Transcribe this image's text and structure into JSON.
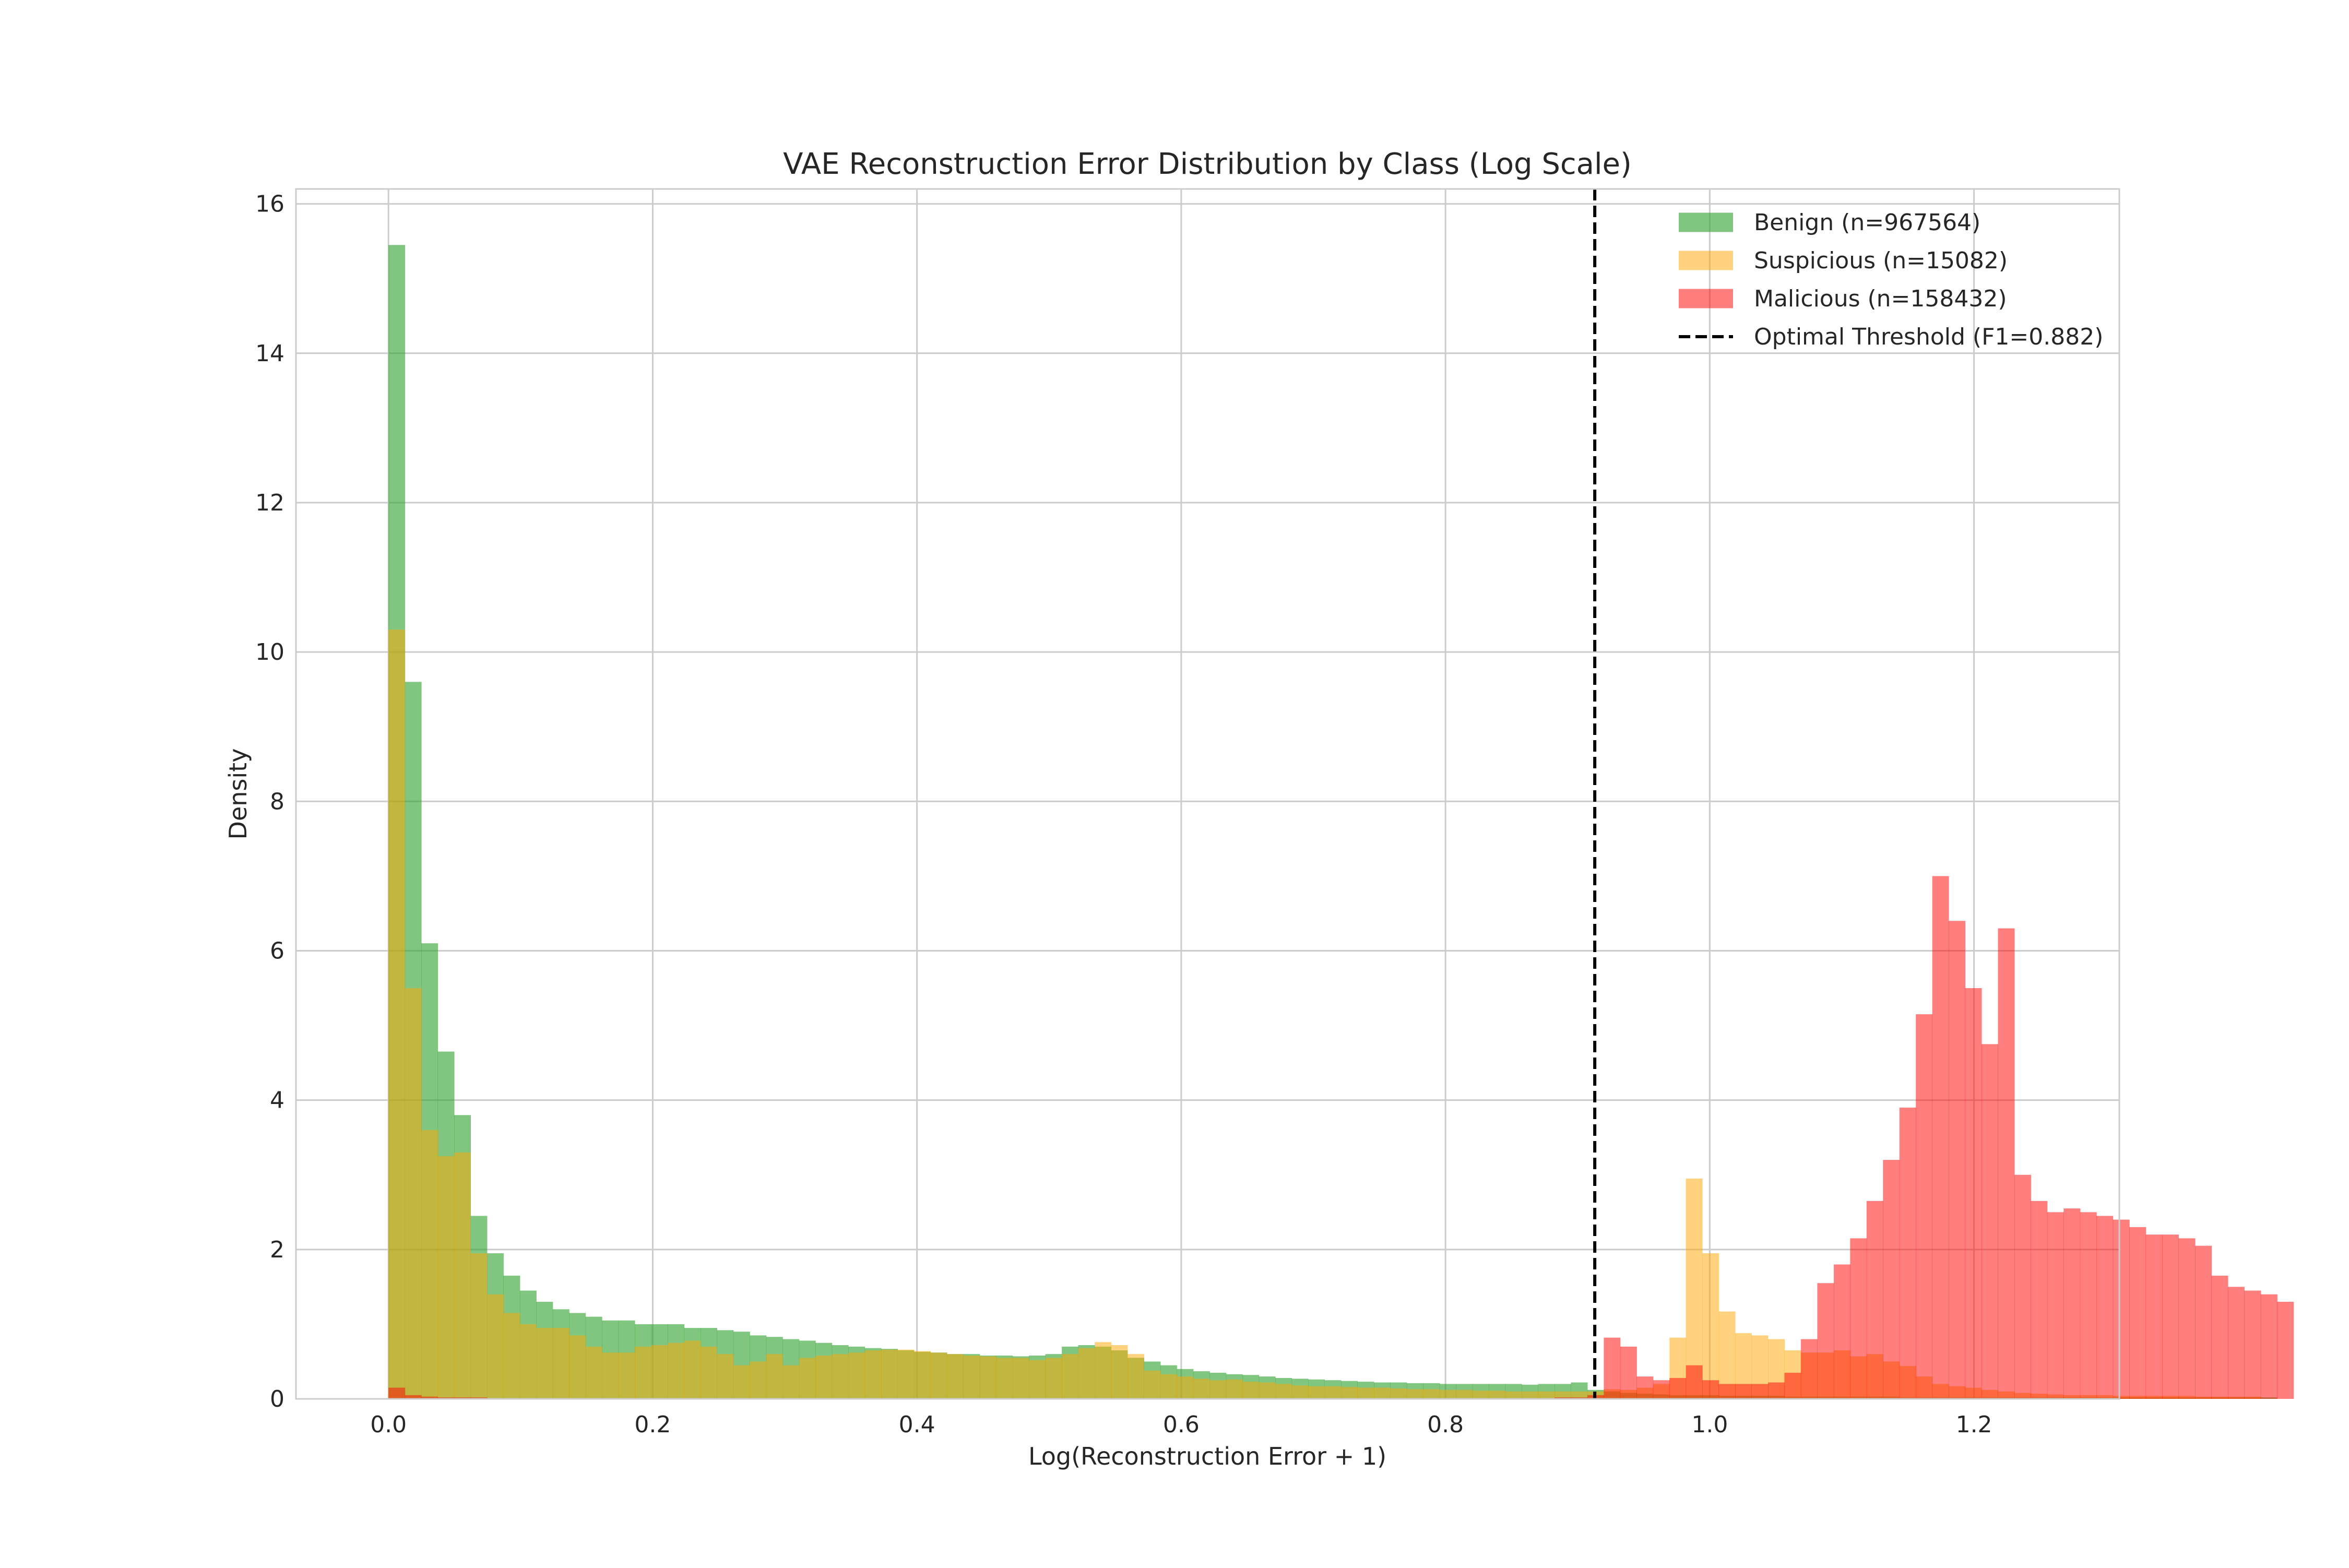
{
  "chart_data": {
    "type": "histogram",
    "title": "VAE Reconstruction Error Distribution by Class (Log Scale)",
    "xlabel": "Log(Reconstruction Error + 1)",
    "ylabel": "Density",
    "xlim": [
      -0.07,
      1.31
    ],
    "ylim": [
      0,
      16.2
    ],
    "xticks": [
      0.0,
      0.2,
      0.4,
      0.6,
      0.8,
      1.0,
      1.2
    ],
    "xtick_labels": [
      "0.0",
      "0.2",
      "0.4",
      "0.6",
      "0.8",
      "1.0",
      "1.2"
    ],
    "yticks": [
      0,
      2,
      4,
      6,
      8,
      10,
      12,
      14,
      16
    ],
    "ytick_labels": [
      "0",
      "2",
      "4",
      "6",
      "8",
      "10",
      "12",
      "14",
      "16"
    ],
    "grid": true,
    "legend_position": "top-right",
    "bin_start": 0.0,
    "bin_width": 0.01243,
    "series": [
      {
        "name": "Benign (n=967564)",
        "color": "#2ca02c",
        "opacity": 0.6,
        "values": [
          15.45,
          9.6,
          6.1,
          4.65,
          3.8,
          2.45,
          1.95,
          1.65,
          1.45,
          1.3,
          1.2,
          1.15,
          1.1,
          1.05,
          1.05,
          1.0,
          1.0,
          1.0,
          0.95,
          0.95,
          0.92,
          0.9,
          0.85,
          0.83,
          0.8,
          0.78,
          0.75,
          0.72,
          0.7,
          0.68,
          0.67,
          0.65,
          0.63,
          0.62,
          0.6,
          0.6,
          0.58,
          0.58,
          0.57,
          0.58,
          0.6,
          0.7,
          0.72,
          0.7,
          0.65,
          0.55,
          0.5,
          0.45,
          0.4,
          0.37,
          0.35,
          0.33,
          0.32,
          0.3,
          0.28,
          0.27,
          0.26,
          0.25,
          0.24,
          0.23,
          0.22,
          0.22,
          0.21,
          0.21,
          0.2,
          0.2,
          0.2,
          0.2,
          0.2,
          0.19,
          0.2,
          0.2,
          0.22,
          0.12,
          0.1,
          0.08,
          0.07,
          0.06,
          0.05,
          0.05,
          0.05,
          0.04,
          0.04,
          0.04,
          0.04,
          0.03,
          0.03,
          0.03,
          0.03,
          0.03,
          0.03,
          0.03,
          0.02,
          0.02,
          0.02,
          0.02,
          0.02,
          0.02,
          0.02,
          0.02,
          0.02,
          0.02,
          0.02,
          0.02,
          0.02,
          0.02,
          0.02,
          0.02,
          0.02,
          0.02,
          0.02,
          0.02,
          0.02,
          0.02,
          0.02
        ]
      },
      {
        "name": "Suspicious (n=15082)",
        "color": "#ffa500",
        "opacity": 0.5,
        "values": [
          10.3,
          5.5,
          3.6,
          3.25,
          3.3,
          1.95,
          1.4,
          1.15,
          1.0,
          0.95,
          0.95,
          0.85,
          0.7,
          0.62,
          0.62,
          0.7,
          0.72,
          0.75,
          0.78,
          0.7,
          0.6,
          0.45,
          0.5,
          0.6,
          0.45,
          0.55,
          0.58,
          0.6,
          0.62,
          0.65,
          0.66,
          0.66,
          0.64,
          0.62,
          0.6,
          0.58,
          0.57,
          0.55,
          0.55,
          0.52,
          0.55,
          0.6,
          0.68,
          0.76,
          0.72,
          0.6,
          0.38,
          0.33,
          0.3,
          0.27,
          0.25,
          0.26,
          0.23,
          0.22,
          0.2,
          0.18,
          0.17,
          0.17,
          0.16,
          0.15,
          0.15,
          0.14,
          0.13,
          0.13,
          0.12,
          0.12,
          0.11,
          0.11,
          0.1,
          0.1,
          0.1,
          0.1,
          0.1,
          0.1,
          0.13,
          0.12,
          0.15,
          0.2,
          0.82,
          2.95,
          1.95,
          1.17,
          0.88,
          0.85,
          0.8,
          0.65,
          0.62,
          0.62,
          0.65,
          0.57,
          0.6,
          0.5,
          0.44,
          0.3,
          0.2,
          0.17,
          0.15,
          0.12,
          0.1,
          0.08,
          0.07,
          0.06,
          0.05,
          0.05,
          0.05,
          0.04,
          0.04,
          0.04,
          0.04,
          0.04,
          0.03,
          0.03,
          0.03,
          0.03
        ]
      },
      {
        "name": "Malicious (n=158432)",
        "color": "#ff0000",
        "opacity": 0.5,
        "values": [
          0.15,
          0.05,
          0.03,
          0.02,
          0.02,
          0.02,
          0.01,
          0.01,
          0.01,
          0.01,
          0.01,
          0.01,
          0.01,
          0.01,
          0.01,
          0.01,
          0.01,
          0.01,
          0.01,
          0.01,
          0.01,
          0.01,
          0.01,
          0.01,
          0.01,
          0.01,
          0.01,
          0.01,
          0.01,
          0.01,
          0.01,
          0.01,
          0.01,
          0.01,
          0.01,
          0.01,
          0.01,
          0.01,
          0.01,
          0.01,
          0.01,
          0.01,
          0.01,
          0.01,
          0.01,
          0.01,
          0.01,
          0.01,
          0.01,
          0.01,
          0.01,
          0.01,
          0.01,
          0.01,
          0.01,
          0.01,
          0.01,
          0.01,
          0.01,
          0.01,
          0.01,
          0.01,
          0.01,
          0.01,
          0.01,
          0.01,
          0.01,
          0.01,
          0.01,
          0.01,
          0.01,
          0.02,
          0.02,
          0.05,
          0.82,
          0.7,
          0.3,
          0.25,
          0.28,
          0.45,
          0.25,
          0.2,
          0.2,
          0.2,
          0.22,
          0.35,
          0.8,
          1.55,
          1.8,
          2.15,
          2.65,
          3.2,
          3.9,
          5.15,
          7.0,
          6.4,
          5.5,
          4.75,
          6.3,
          3.0,
          2.65,
          2.5,
          2.55,
          2.5,
          2.45,
          2.4,
          2.3,
          2.2,
          2.2,
          2.15,
          2.05,
          1.65,
          1.5,
          1.45,
          1.4,
          1.3
        ]
      }
    ],
    "threshold": {
      "name": "Optimal Threshold (F1=0.882)",
      "x": 0.913,
      "color": "#000000",
      "style": "dashed"
    }
  }
}
